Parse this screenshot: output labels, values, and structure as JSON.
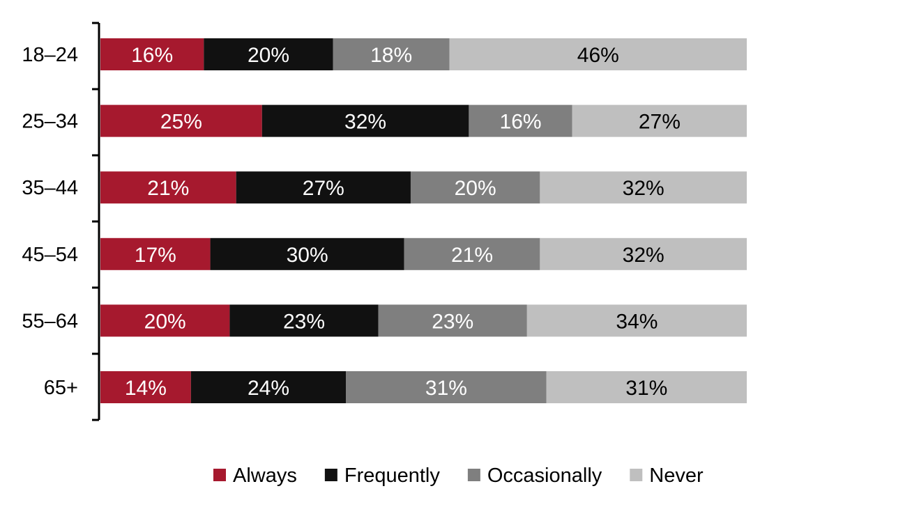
{
  "chart_data": {
    "type": "bar",
    "orientation": "horizontal",
    "stacked": true,
    "percent_stacked": true,
    "categories": [
      "18–24",
      "25–34",
      "35–44",
      "45–54",
      "55–64",
      "65+"
    ],
    "series": [
      {
        "name": "Always",
        "color": "#a6192e",
        "label_color": "#ffffff",
        "values": [
          16,
          25,
          21,
          17,
          20,
          14
        ],
        "labels": [
          "16%",
          "25%",
          "21%",
          "17%",
          "20%",
          "14%"
        ]
      },
      {
        "name": "Frequently",
        "color": "#111111",
        "label_color": "#ffffff",
        "values": [
          20,
          32,
          27,
          30,
          23,
          24
        ],
        "labels": [
          "20%",
          "32%",
          "27%",
          "30%",
          "23%",
          "24%"
        ]
      },
      {
        "name": "Occasionally",
        "color": "#7f7f7f",
        "label_color": "#ffffff",
        "values": [
          18,
          16,
          20,
          21,
          23,
          31
        ],
        "labels": [
          "18%",
          "16%",
          "20%",
          "21%",
          "23%",
          "31%"
        ]
      },
      {
        "name": "Never",
        "color": "#bfbfbf",
        "label_color": "#000000",
        "values": [
          46,
          27,
          32,
          32,
          34,
          31
        ],
        "labels": [
          "46%",
          "27%",
          "32%",
          "32%",
          "34%",
          "31%"
        ]
      }
    ],
    "xlim": [
      0,
      100
    ],
    "grid": false,
    "legend_position": "bottom-center"
  }
}
